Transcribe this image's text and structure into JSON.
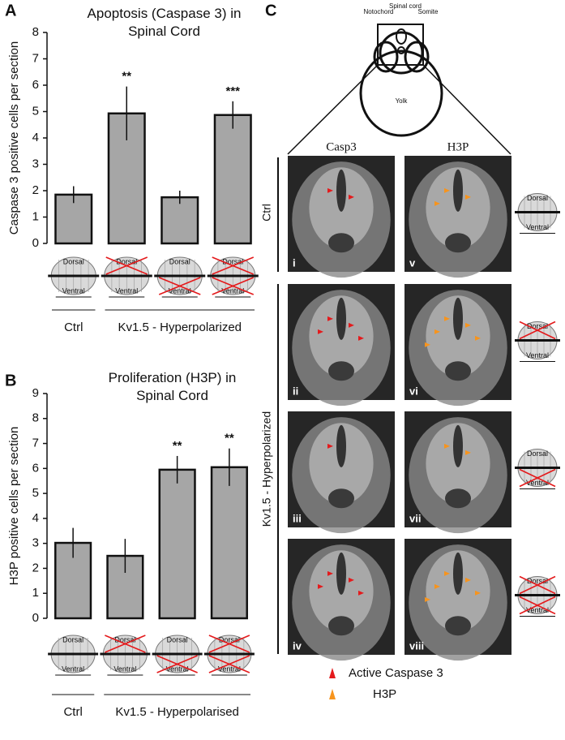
{
  "panel_labels": [
    "A",
    "B",
    "C"
  ],
  "chart_data": [
    {
      "type": "bar",
      "title": "Apoptosis (Caspase 3) in Spinal Cord",
      "y_label": "Caspase 3 positive cells per section",
      "categories": [
        null,
        null,
        null,
        null
      ],
      "values": [
        1.85,
        4.93,
        1.75,
        4.87
      ],
      "errors": [
        0.32,
        1.02,
        0.25,
        0.52
      ],
      "annotations": [
        null,
        "**",
        null,
        "***"
      ],
      "color": "#a6a6a6",
      "ylim": [
        0,
        8
      ],
      "yticks": [
        0,
        1,
        2,
        3,
        4,
        5,
        6,
        7,
        8
      ],
      "groups": [
        "Ctrl",
        "Kv1.5 - Hyperpolarized"
      ],
      "icon_labels": {
        "top": "Dorsal",
        "bottom": "Ventral"
      },
      "dorsal_crossed": [
        false,
        true,
        false,
        true
      ],
      "ventral_crossed": [
        false,
        false,
        true,
        true
      ]
    },
    {
      "type": "bar",
      "title": "Proliferation (H3P) in Spinal Cord",
      "y_label": "H3P  positive cells per section",
      "categories": [
        null,
        null,
        null,
        null
      ],
      "values": [
        3.02,
        2.5,
        5.95,
        6.05
      ],
      "errors": [
        0.6,
        0.68,
        0.55,
        0.75
      ],
      "annotations": [
        null,
        null,
        "**",
        "**"
      ],
      "color": "#a6a6a6",
      "ylim": [
        0,
        9
      ],
      "yticks": [
        0,
        1,
        2,
        3,
        4,
        5,
        6,
        7,
        8,
        9
      ],
      "groups": [
        "Ctrl",
        "Kv1.5 - Hyperpolarised"
      ],
      "icon_labels": {
        "top": "Dorsal",
        "bottom": "Ventral"
      },
      "dorsal_crossed": [
        false,
        true,
        false,
        true
      ],
      "ventral_crossed": [
        false,
        false,
        true,
        true
      ]
    }
  ],
  "panel_c": {
    "diagram_labels": {
      "notochord": "Notochord",
      "spinal_cord": "Spinal cord",
      "somite": "Somite",
      "yolk": "Yolk"
    },
    "columns": [
      "Casp3",
      "H3P"
    ],
    "rows": [
      "Ctrl",
      "Kv1.5 - Hyperpolarized"
    ],
    "images": [
      "i",
      "ii",
      "iii",
      "iv",
      "v",
      "vi",
      "vii",
      "viii"
    ],
    "legend": [
      {
        "label": "Active Caspase 3",
        "color": "#e41a1c"
      },
      {
        "label": "H3P",
        "color": "#f7941d"
      }
    ],
    "icon_labels": {
      "top": "Dorsal",
      "bottom": "Ventral"
    },
    "dorsal_crossed": [
      false,
      true,
      false,
      true
    ],
    "ventral_crossed": [
      false,
      false,
      true,
      true
    ]
  }
}
